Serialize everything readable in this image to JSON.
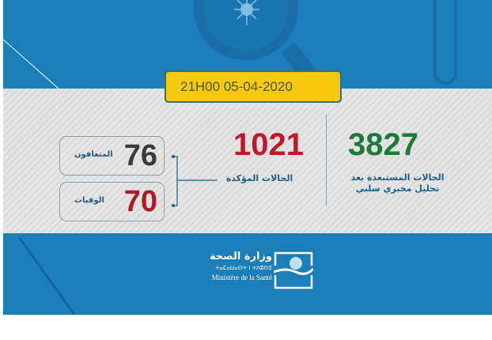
{
  "date": "21H00  05-04-2020",
  "excluded": {
    "value": "3827",
    "label_line1": "الحالات المستبعدة بعد",
    "label_line2": "تحليل مخبري سلبي",
    "color": "#1d7a3c"
  },
  "confirmed": {
    "value": "1021",
    "label": "الحالات المؤكدة",
    "color": "#c0182a"
  },
  "recovered": {
    "value": "76",
    "label": "المتعافون",
    "color": "#3a3a3a"
  },
  "deaths": {
    "value": "70",
    "label": "الوفيات",
    "color": "#b0182a"
  },
  "ministry": {
    "arabic": "وزارة الصحة",
    "tifinagh": "ⵜⴰⵎⴰⵡⴰⵙⵜ ⵏ ⵜⴷⵓⵙⵉ",
    "french": "Ministère de la Santé"
  },
  "colors": {
    "blue": "#1a7fb8",
    "yellow": "#f8c80c"
  }
}
